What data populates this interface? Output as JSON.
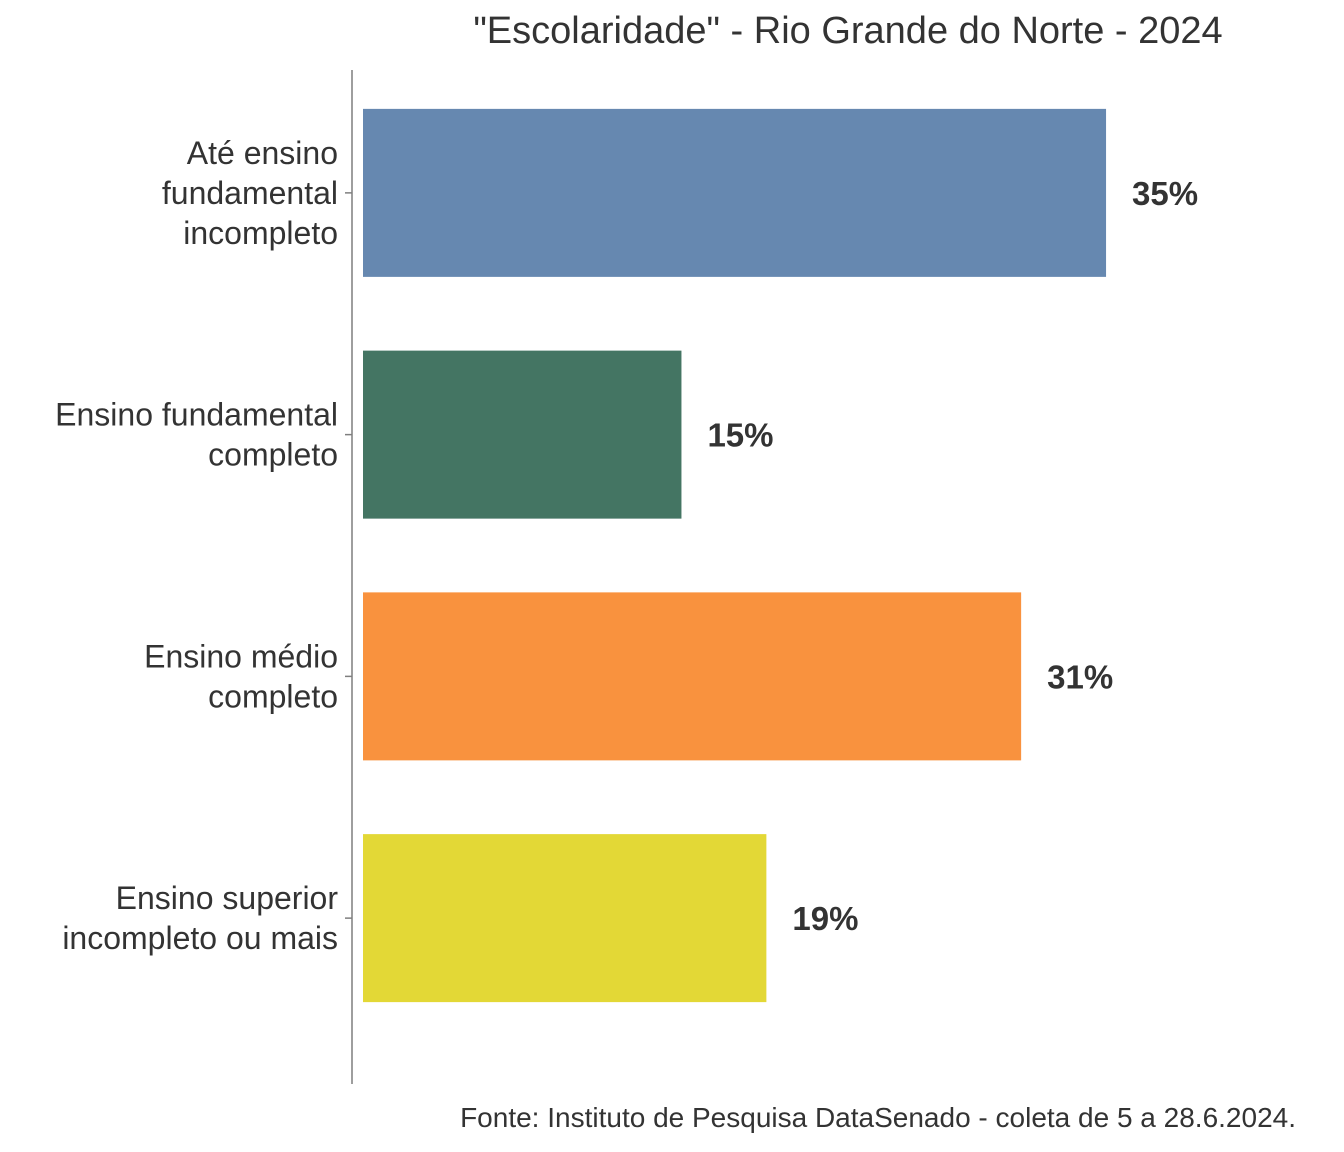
{
  "chart_data": {
    "type": "bar",
    "orientation": "horizontal",
    "title": "\"Escolaridade\" - Rio Grande do Norte - 2024",
    "categories": [
      [
        "Até ensino",
        "fundamental",
        "incompleto"
      ],
      [
        "Ensino fundamental",
        "completo"
      ],
      [
        "Ensino médio",
        "completo"
      ],
      [
        "Ensino superior",
        "incompleto ou mais"
      ]
    ],
    "values": [
      35,
      15,
      31,
      19
    ],
    "value_labels": [
      "35%",
      "15%",
      "31%",
      "19%"
    ],
    "colors": [
      "#6688b0",
      "#447563",
      "#f9923e",
      "#e3d836"
    ],
    "xlim": [
      0,
      40
    ],
    "grid": false,
    "legend": "none"
  },
  "source": "Fonte: Instituto de Pesquisa DataSenado - coleta de 5 a 28.6.2024."
}
